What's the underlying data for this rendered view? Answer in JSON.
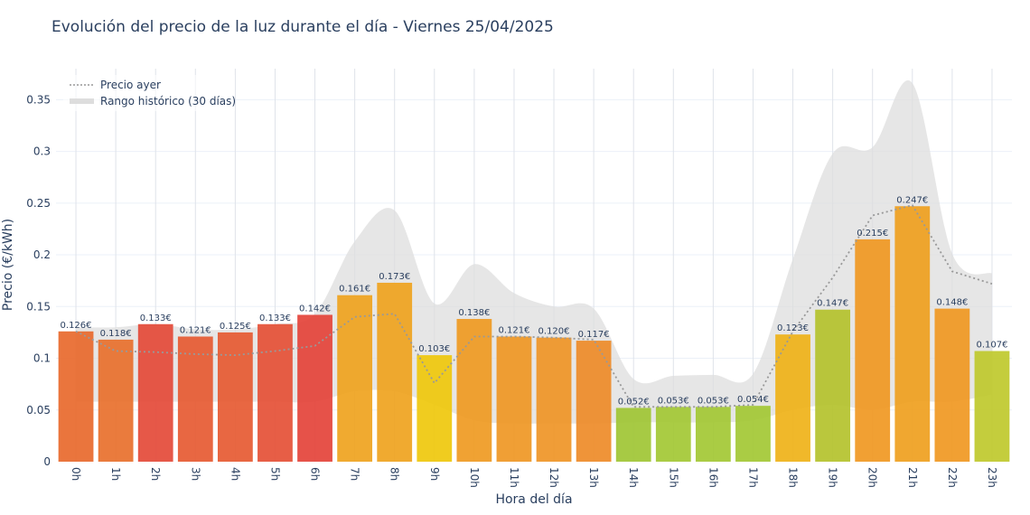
{
  "chart_data": {
    "type": "bar",
    "title": "Evolución del precio de la luz durante el día - Viernes 25/04/2025",
    "xlabel": "Hora del día",
    "ylabel": "Precio (€/kWh)",
    "ylim": [
      0,
      0.38
    ],
    "yticks": [
      {
        "value": 0,
        "label": "0"
      },
      {
        "value": 0.05,
        "label": "0.05"
      },
      {
        "value": 0.1,
        "label": "0.1"
      },
      {
        "value": 0.15,
        "label": "0.15"
      },
      {
        "value": 0.2,
        "label": "0.2"
      },
      {
        "value": 0.25,
        "label": "0.25"
      },
      {
        "value": 0.3,
        "label": "0.3"
      },
      {
        "value": 0.35,
        "label": "0.35"
      }
    ],
    "grid": true,
    "legend_position": "top-left",
    "categories": [
      "0h",
      "1h",
      "2h",
      "3h",
      "4h",
      "5h",
      "6h",
      "7h",
      "8h",
      "9h",
      "10h",
      "11h",
      "12h",
      "13h",
      "14h",
      "15h",
      "16h",
      "17h",
      "18h",
      "19h",
      "20h",
      "21h",
      "22h",
      "23h"
    ],
    "series": [
      {
        "values": [
          0.126,
          0.118,
          0.133,
          0.121,
          0.125,
          0.133,
          0.142,
          0.161,
          0.173,
          0.103,
          0.138,
          0.121,
          0.12,
          0.117,
          0.052,
          0.053,
          0.053,
          0.054,
          0.123,
          0.147,
          0.215,
          0.247,
          0.148,
          0.107
        ],
        "labels": [
          "0.126€",
          "0.118€",
          "0.133€",
          "0.121€",
          "0.125€",
          "0.133€",
          "0.142€",
          "0.161€",
          "0.173€",
          "0.103€",
          "0.138€",
          "0.121€",
          "0.120€",
          "0.117€",
          "0.052€",
          "0.053€",
          "0.053€",
          "0.054€",
          "0.123€",
          "0.147€",
          "0.215€",
          "0.247€",
          "0.148€",
          "0.107€"
        ],
        "colors": [
          "#e8692c",
          "#e8702c",
          "#e44a38",
          "#e65a32",
          "#e65a32",
          "#e55036",
          "#e4433a",
          "#efa31e",
          "#efa31e",
          "#efc80c",
          "#ef9a22",
          "#ef9724",
          "#ef9526",
          "#ee8b28",
          "#a0c534",
          "#a3c834",
          "#a3c834",
          "#a3c834",
          "#efb218",
          "#b4c22c",
          "#f09822",
          "#efa01e",
          "#f09822",
          "#bfc92c"
        ]
      },
      {
        "name": "Precio ayer",
        "type": "line",
        "style": "dotted",
        "color": "#999999",
        "values": [
          0.126,
          0.107,
          0.106,
          0.104,
          0.103,
          0.107,
          0.112,
          0.14,
          0.143,
          0.076,
          0.121,
          0.121,
          0.12,
          0.118,
          0.053,
          0.053,
          0.053,
          0.055,
          0.126,
          0.178,
          0.238,
          0.248,
          0.184,
          0.172
        ]
      },
      {
        "name": "Rango histórico (30 días)",
        "type": "area",
        "color": "#dddddd",
        "lower": [
          0.058,
          0.058,
          0.058,
          0.058,
          0.058,
          0.058,
          0.058,
          0.068,
          0.068,
          0.055,
          0.04,
          0.037,
          0.037,
          0.037,
          0.038,
          0.038,
          0.038,
          0.04,
          0.05,
          0.055,
          0.05,
          0.058,
          0.058,
          0.065
        ],
        "upper": [
          0.13,
          0.13,
          0.133,
          0.128,
          0.128,
          0.133,
          0.143,
          0.213,
          0.243,
          0.153,
          0.191,
          0.163,
          0.15,
          0.148,
          0.08,
          0.083,
          0.084,
          0.085,
          0.196,
          0.298,
          0.304,
          0.366,
          0.201,
          0.182
        ]
      }
    ]
  }
}
